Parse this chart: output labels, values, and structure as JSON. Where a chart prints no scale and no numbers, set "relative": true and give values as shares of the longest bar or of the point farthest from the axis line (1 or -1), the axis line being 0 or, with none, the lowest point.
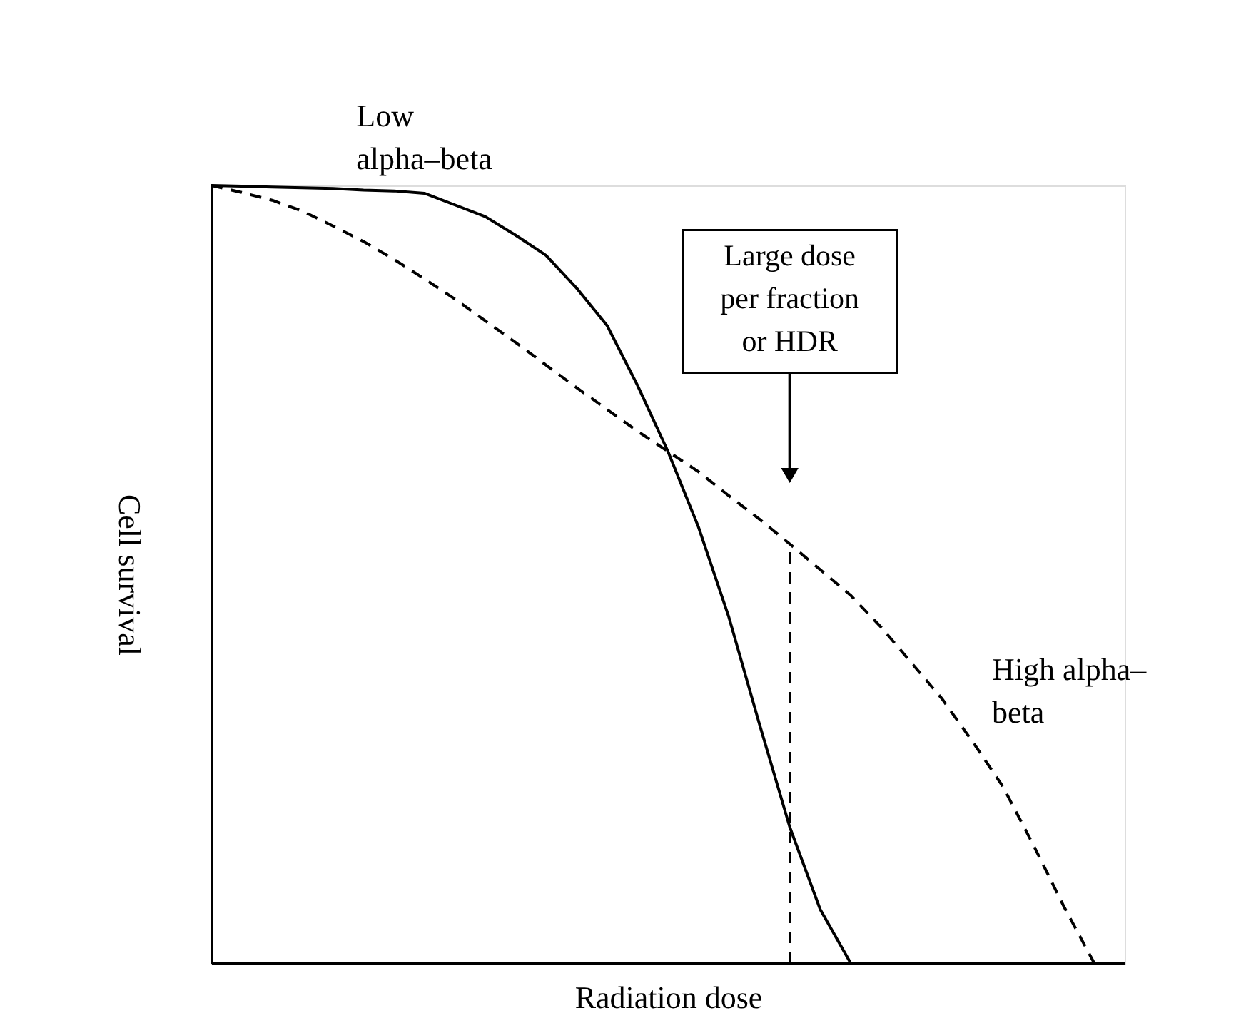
{
  "chart_data": {
    "type": "line",
    "relative": true,
    "xlabel": "Radiation dose",
    "ylabel": "Cell survival",
    "ylim": [
      0,
      1
    ],
    "marker": "none",
    "categories": [
      null,
      null,
      null,
      null,
      null,
      null,
      null,
      null,
      null,
      null,
      null,
      null,
      null,
      null,
      null,
      null,
      null,
      null,
      null,
      null,
      null,
      null,
      null,
      null,
      null,
      null,
      null,
      null,
      null,
      null,
      null
    ],
    "series": [
      {
        "name": "Low alpha–beta",
        "color": "#000000",
        "line_style": "solid",
        "values": [
          1,
          0.999,
          0.998,
          0.997,
          0.996,
          0.994,
          0.993,
          0.99,
          0.975,
          0.96,
          0.936,
          0.91,
          0.868,
          0.82,
          0.743,
          0.658,
          0.561,
          0.445,
          0.308,
          0.175,
          0.069,
          0,
          null,
          null,
          null,
          null,
          null,
          null,
          null,
          null,
          null
        ]
      },
      {
        "name": "High alpha–beta",
        "color": "#000000",
        "line_style": "dashed",
        "values": [
          1,
          0.991,
          0.981,
          0.967,
          0.948,
          0.928,
          0.905,
          0.88,
          0.854,
          0.826,
          0.798,
          0.769,
          0.74,
          0.712,
          0.684,
          0.658,
          0.632,
          0.601,
          0.571,
          0.539,
          0.506,
          0.473,
          0.432,
          0.386,
          0.34,
          0.285,
          0.227,
          0.152,
          0.073,
          0,
          null
        ]
      }
    ],
    "annotations": [
      "Large dose\nper fraction\nor HDR"
    ]
  }
}
